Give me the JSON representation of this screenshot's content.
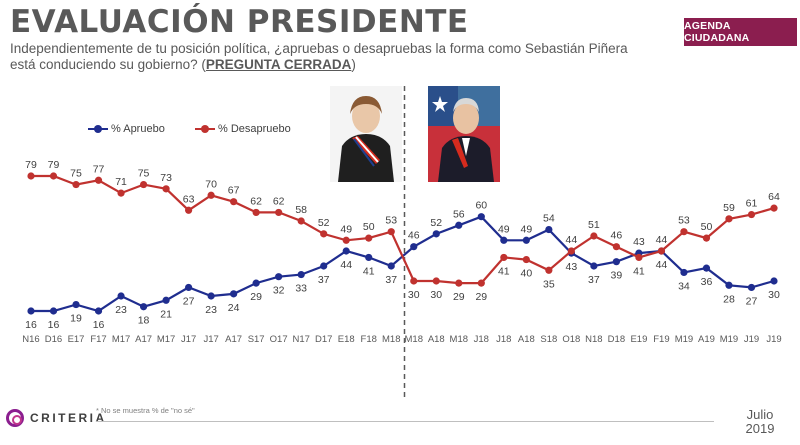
{
  "header": {
    "title": "EVALUACIÓN PRESIDENTE",
    "question": "Independientemente de tu posición política, ¿apruebas o desapruebas la forma como Sebastián Piñera está conduciendo su gobierno? (",
    "question_tag": "PREGUNTA CERRADA",
    "question_end": ")",
    "badge": "AGENDA CIUDADANA"
  },
  "footer": {
    "logo_text": "CRITERIA",
    "footnote": "* No se muestra % de \"no sé\"",
    "month": "Julio",
    "year": "2019"
  },
  "colors": {
    "aprueba": "#1f2d8f",
    "desaprueba": "#c0322f",
    "badge": "#8b1e4f",
    "divider": "#595959"
  },
  "chart_data": {
    "type": "line",
    "categories": [
      "N16",
      "D16",
      "E17",
      "F17",
      "M17",
      "A17",
      "M17",
      "J17",
      "J17",
      "A17",
      "S17",
      "O17",
      "N17",
      "D17",
      "E18",
      "F18",
      "M18",
      "M18",
      "A18",
      "M18",
      "J18",
      "J18",
      "A18",
      "S18",
      "O18",
      "N18",
      "D18",
      "E19",
      "F19",
      "M19",
      "A19",
      "M19",
      "J19",
      "J19"
    ],
    "series": [
      {
        "name": "% Apruebo",
        "color": "#1f2d8f",
        "values": [
          16,
          16,
          19,
          16,
          23,
          18,
          21,
          27,
          23,
          24,
          29,
          32,
          33,
          37,
          44,
          41,
          37,
          46,
          52,
          56,
          60,
          49,
          49,
          54,
          43,
          37,
          39,
          43,
          44,
          34,
          36,
          28,
          27,
          30
        ]
      },
      {
        "name": "% Desapruebo",
        "color": "#c0322f",
        "values": [
          79,
          79,
          75,
          77,
          71,
          75,
          73,
          63,
          70,
          67,
          62,
          62,
          58,
          52,
          49,
          50,
          53,
          30,
          30,
          29,
          29,
          41,
          40,
          35,
          44,
          51,
          46,
          41,
          44,
          53,
          50,
          59,
          61,
          64
        ]
      }
    ],
    "divider_after_index": 16,
    "legend_position": "top-left",
    "grid": false
  }
}
